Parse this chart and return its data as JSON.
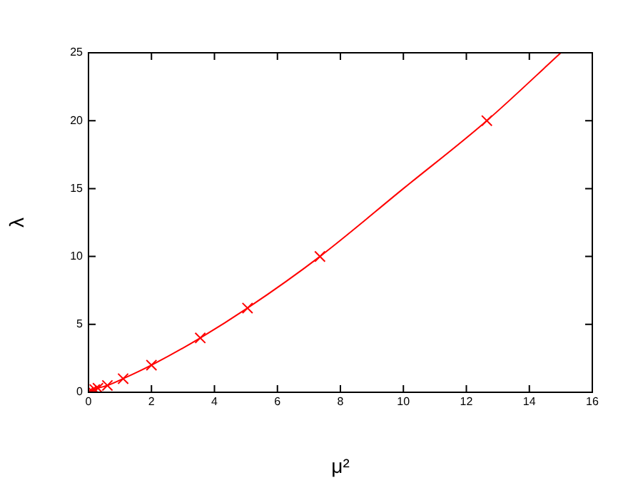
{
  "chart_data": {
    "type": "scatter",
    "xlabel": "μ²",
    "ylabel": "λ",
    "xlim": [
      0,
      16
    ],
    "ylim": [
      0,
      25
    ],
    "xticks": [
      0,
      2,
      4,
      6,
      8,
      10,
      12,
      14,
      16
    ],
    "yticks": [
      0,
      5,
      10,
      15,
      20,
      25
    ],
    "grid": false,
    "legend": false,
    "series": [
      {
        "color": "#ff0000",
        "marker": "cross",
        "x": [
          0,
          0.1,
          0.2,
          0.3,
          0.6,
          1.1,
          2,
          3.55,
          5.05,
          7.35,
          12.65
        ],
        "values": [
          0,
          0.1,
          0.2,
          0.3,
          0.5,
          1,
          2,
          4,
          6.2,
          10,
          20
        ]
      },
      {
        "type": "line",
        "color": "#ff0000",
        "marker": "none",
        "line_style": "solid",
        "x": [
          0,
          0.3,
          0.6,
          1.1,
          2,
          3.55,
          5.05,
          7.35,
          10,
          12.65,
          15
        ],
        "values": [
          0,
          0.3,
          0.5,
          1,
          2,
          4,
          6.2,
          10,
          15,
          20,
          25
        ]
      }
    ]
  }
}
